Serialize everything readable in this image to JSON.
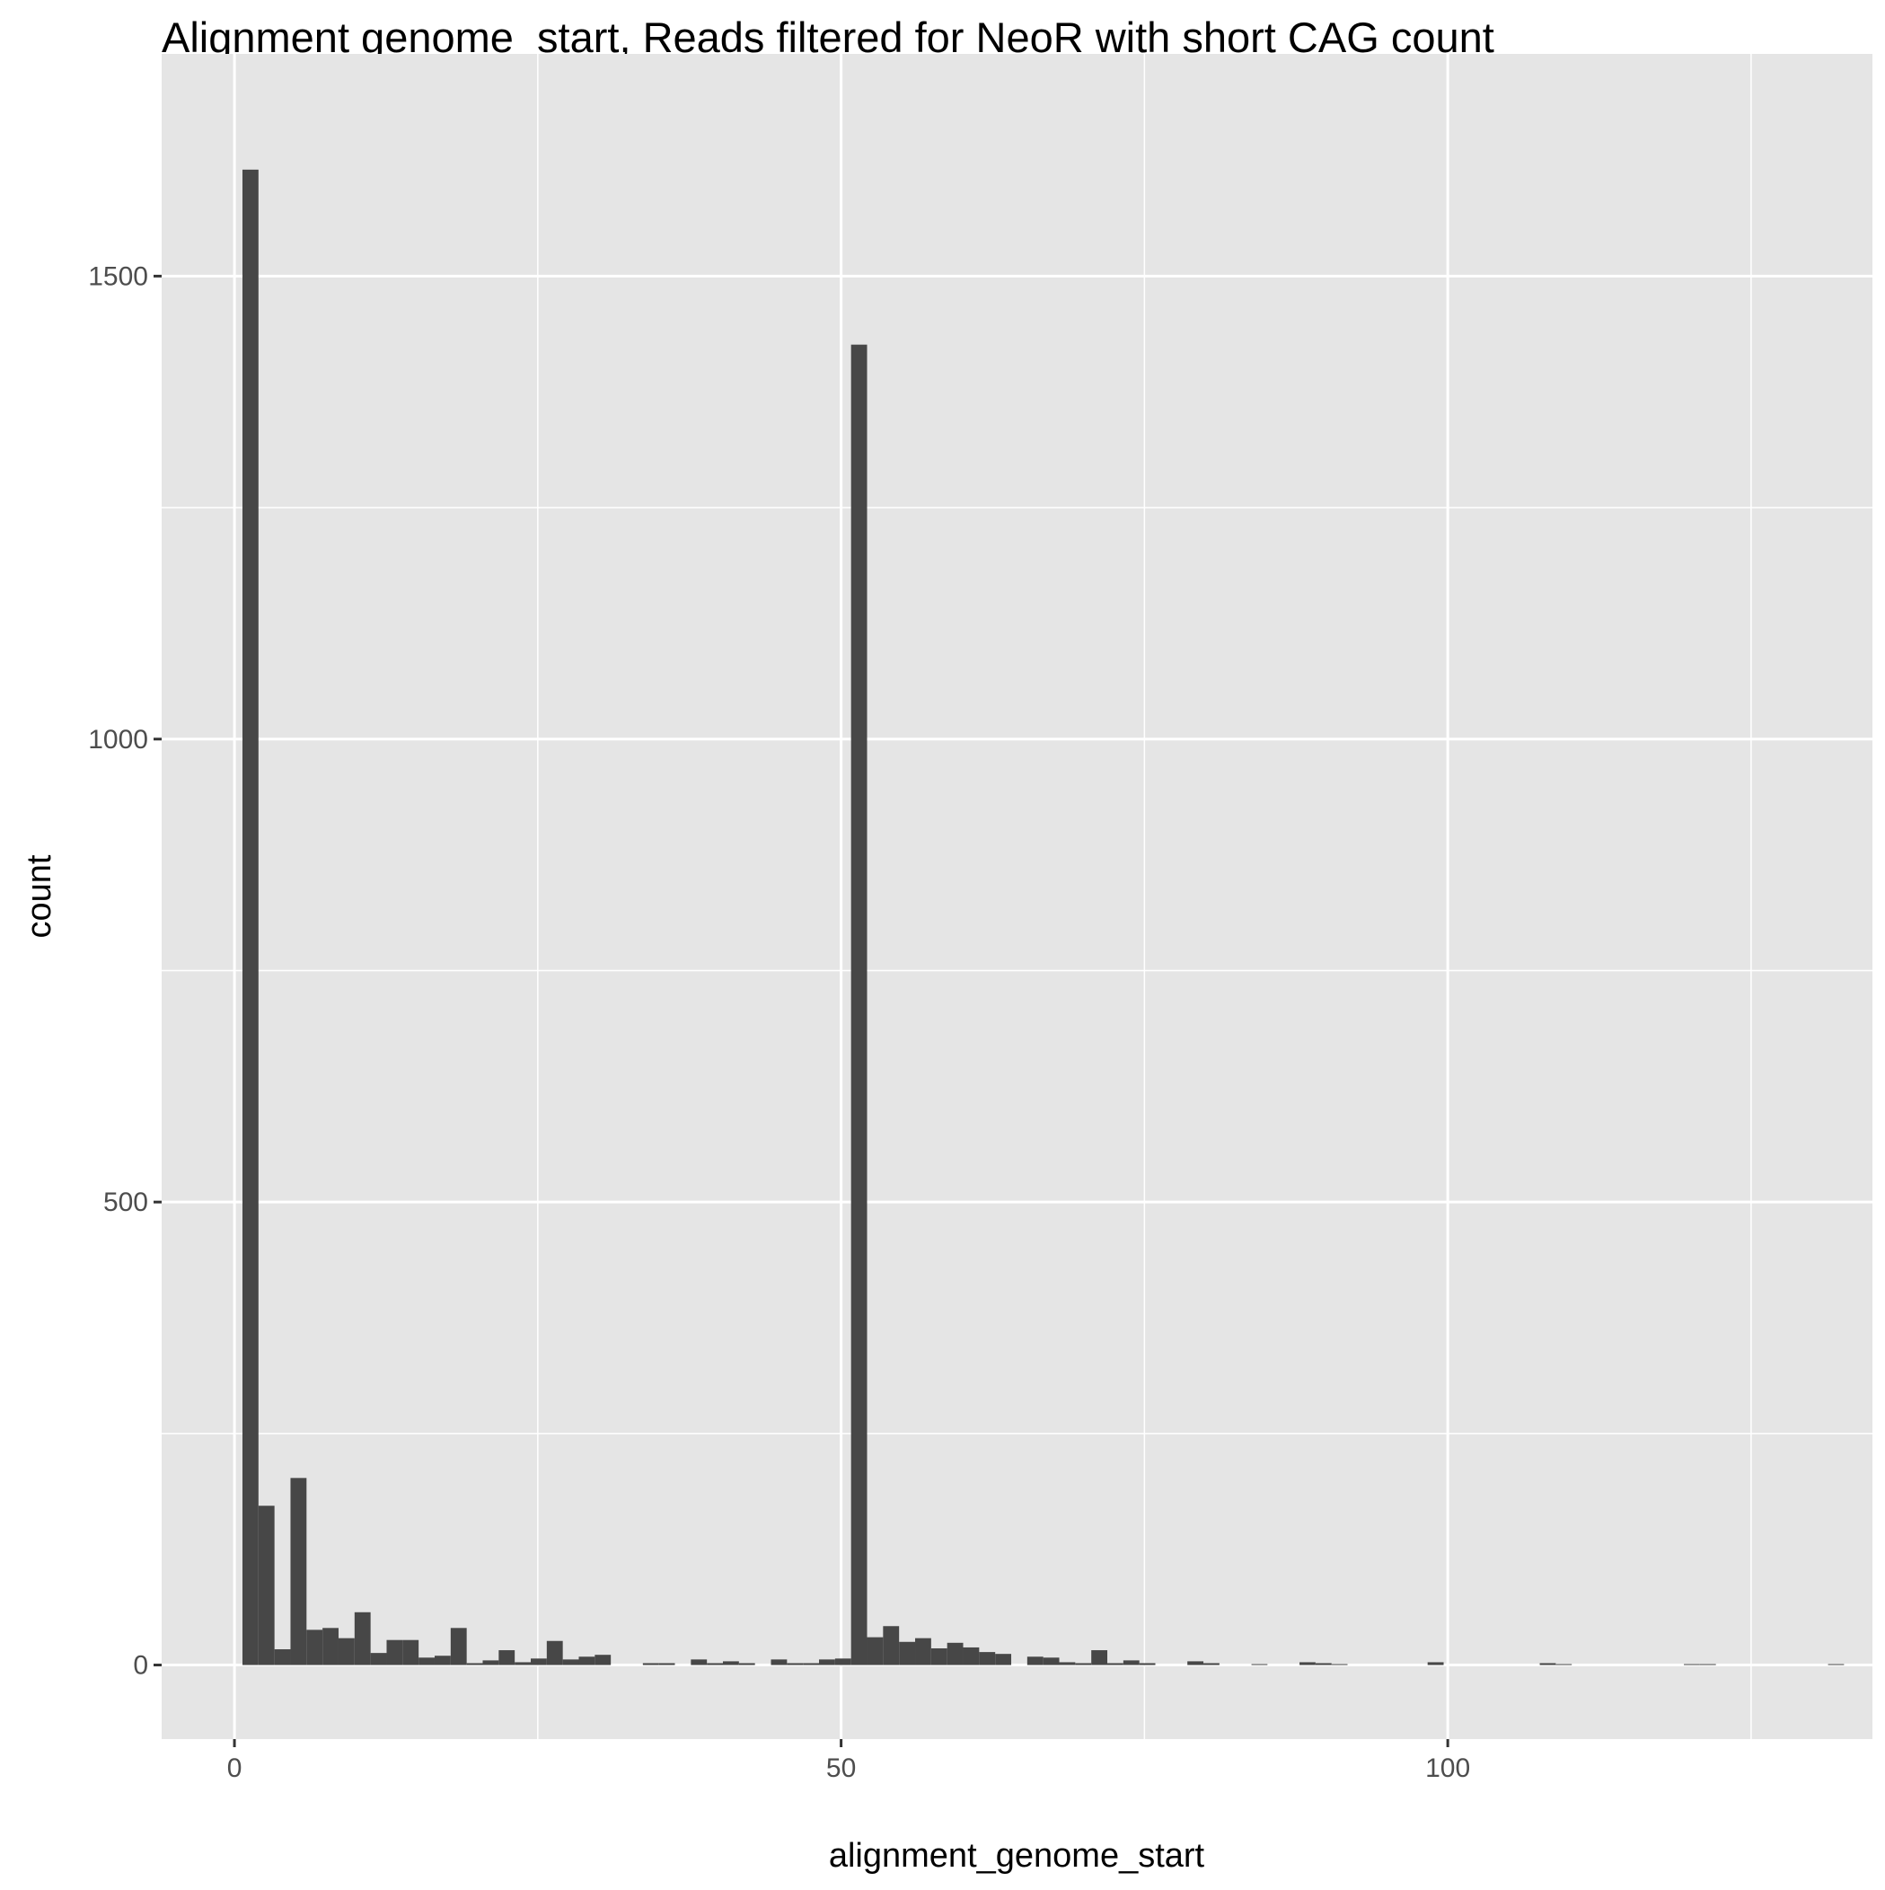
{
  "chart_data": {
    "type": "bar",
    "title": "Alignment genome_start, Reads filtered for NeoR with short CAG count",
    "xlabel": "alignment_genome_start",
    "ylabel": "count",
    "xlim": [
      -6,
      135
    ],
    "ylim": [
      -80,
      1740
    ],
    "x_ticks": [
      0,
      50,
      100
    ],
    "x_tick_labels": [
      "0",
      "50",
      "100"
    ],
    "y_ticks": [
      0,
      500,
      1000,
      1500
    ],
    "y_tick_labels": [
      "0",
      "500",
      "1000",
      "1500"
    ],
    "x_minor_ticks": [
      25,
      75,
      125
    ],
    "y_minor_ticks": [
      250,
      750,
      1250
    ],
    "bin_width": 1.32,
    "grid": true,
    "colors": {
      "panel": "#E5E5E5",
      "bar": "#474747",
      "grid": "#FFFFFF",
      "tick": "#333333"
    },
    "series": [
      {
        "bins_x": [
          1.32,
          2.64,
          3.96,
          5.28,
          6.6,
          7.92,
          9.24,
          10.56,
          11.88,
          13.2,
          14.52,
          15.84,
          17.16,
          18.48,
          19.8,
          21.12,
          22.44,
          23.76,
          25.08,
          26.4,
          27.72,
          29.04,
          30.36,
          34.32,
          35.64,
          38.28,
          39.6,
          40.92,
          42.24,
          44.88,
          46.2,
          47.52,
          48.84,
          50.16,
          51.48,
          52.8,
          54.12,
          55.44,
          56.76,
          58.08,
          59.4,
          60.72,
          62.04,
          63.36,
          66.0,
          67.32,
          68.64,
          69.96,
          71.28,
          72.6,
          73.92,
          75.24,
          79.2,
          80.52,
          84.48,
          88.44,
          89.76,
          91.08,
          99.0,
          108.24,
          109.56,
          120.12,
          121.44,
          132.0
        ],
        "values": [
          1615,
          172,
          17,
          202,
          38,
          40,
          29,
          57,
          13,
          27,
          27,
          8,
          10,
          40,
          2,
          5,
          16,
          3,
          7,
          26,
          6,
          9,
          11,
          2,
          2,
          6,
          2,
          4,
          2,
          6,
          2,
          2,
          6,
          7,
          1426,
          30,
          42,
          25,
          29,
          18,
          24,
          19,
          14,
          12,
          9,
          8,
          3,
          2,
          16,
          2,
          5,
          2,
          4,
          2,
          1,
          3,
          2,
          1,
          3,
          2,
          1,
          1,
          1,
          1
        ]
      }
    ]
  }
}
